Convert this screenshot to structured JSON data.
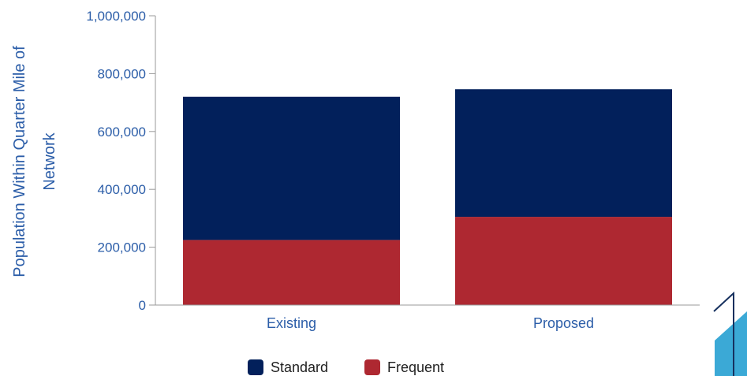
{
  "chart_data": {
    "type": "bar",
    "stacked": true,
    "categories": [
      "Existing",
      "Proposed"
    ],
    "series": [
      {
        "name": "Frequent",
        "values": [
          225000,
          305000
        ],
        "color": "#AE2831"
      },
      {
        "name": "Standard",
        "values": [
          495000,
          441000
        ],
        "color": "#02205B"
      }
    ],
    "ylabel_line1": "Population Within Quarter Mile of",
    "ylabel_line2": "Network",
    "xlabel": "",
    "ylim": [
      0,
      1000000
    ],
    "yticks": [
      "0",
      "200,000",
      "400,000",
      "600,000",
      "800,000",
      "1,000,000"
    ],
    "ytick_values": [
      0,
      200000,
      400000,
      600000,
      800000,
      1000000
    ],
    "legend": {
      "placement": "bottom",
      "entries": [
        "Standard",
        "Frequent"
      ]
    },
    "grid": false
  },
  "colors": {
    "axis_text": "#2B5DA8",
    "axis_line": "#9a9a9a",
    "logo_accent": "#3BA9D6",
    "logo_line": "#16305e"
  }
}
